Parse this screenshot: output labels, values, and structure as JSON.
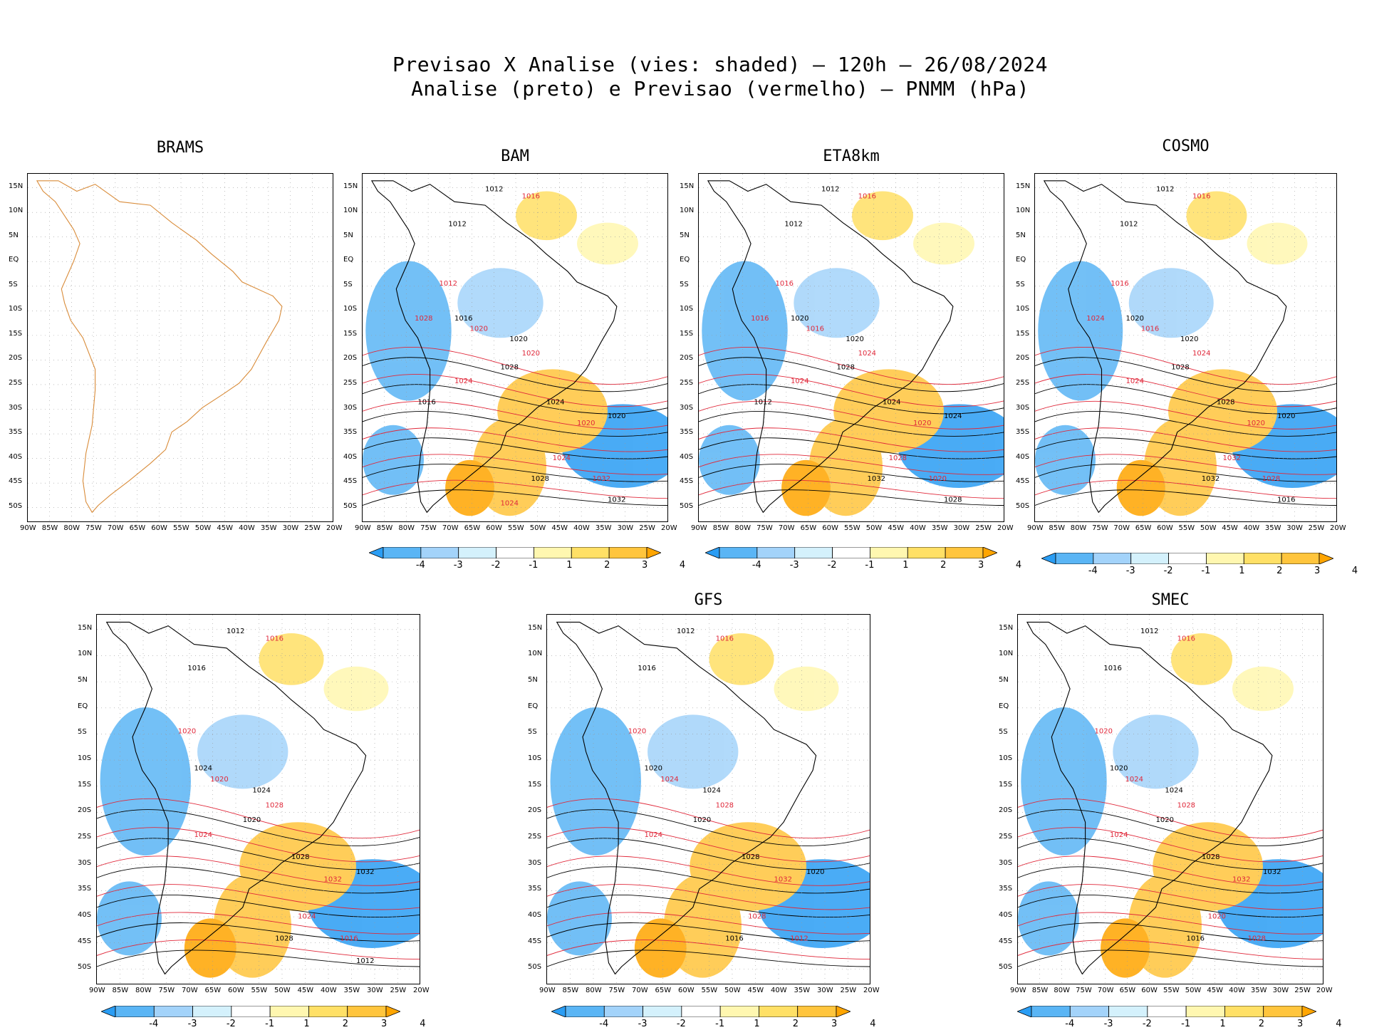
{
  "header": {
    "line1": "Previsao X Analise (vies: shaded) — 120h — 26/08/2024",
    "line2": "Analise (preto) e Previsao (vermelho) — PNMM (hPa)"
  },
  "lat_labels": [
    "15N",
    "10N",
    "5N",
    "EQ",
    "5S",
    "10S",
    "15S",
    "20S",
    "25S",
    "30S",
    "35S",
    "40S",
    "45S",
    "50S"
  ],
  "lon_labels": [
    "90W",
    "85W",
    "80W",
    "75W",
    "70W",
    "65W",
    "60W",
    "55W",
    "50W",
    "45W",
    "40W",
    "35W",
    "30W",
    "25W",
    "20W"
  ],
  "colorbar": {
    "labels": [
      "-4",
      "-3",
      "-2",
      "-1",
      "1",
      "2",
      "3",
      "4"
    ],
    "colors": [
      "#2a9df4",
      "#5ab5f5",
      "#a3d3fa",
      "#d4f1fc",
      "#ffffff",
      "#fff7b0",
      "#ffe066",
      "#ffc53d",
      "#ffa500"
    ]
  },
  "colors": {
    "coast": "#d98c3a",
    "analysis": "#000000",
    "forecast": "#e0283a"
  },
  "panels": [
    {
      "name": "BRAMS",
      "has_colorbar": false,
      "contours": []
    },
    {
      "name": "BAM",
      "has_colorbar": true,
      "contours": [
        "1012",
        "1016",
        "1012",
        "1012",
        "1016",
        "1020",
        "1020",
        "1020",
        "1028",
        "1024",
        "1024",
        "1020",
        "1020",
        "1024",
        "1028",
        "1032",
        "1032",
        "1028",
        "1016",
        "1024"
      ]
    },
    {
      "name": "ETA8km",
      "has_colorbar": true,
      "contours": [
        "1012",
        "1016",
        "1012",
        "1016",
        "1020",
        "1016",
        "1020",
        "1024",
        "1028",
        "1024",
        "1024",
        "1020",
        "1024",
        "1028",
        "1032",
        "1020",
        "1028",
        "1016",
        "1012"
      ]
    },
    {
      "name": "COSMO",
      "has_colorbar": true,
      "contours": [
        "1012",
        "1016",
        "1012",
        "1016",
        "1020",
        "1016",
        "1020",
        "1024",
        "1028",
        "1024",
        "1028",
        "1020",
        "1020",
        "1032",
        "1032",
        "1028",
        "1016",
        "1024"
      ]
    },
    {
      "name": "",
      "has_colorbar": true,
      "contours": [
        "1012",
        "1016",
        "1016",
        "1020",
        "1024",
        "1020",
        "1024",
        "1028",
        "1020",
        "1024",
        "1028",
        "1032",
        "1032",
        "1024",
        "1028",
        "1016",
        "1012"
      ]
    },
    {
      "name": "GFS",
      "has_colorbar": true,
      "contours": [
        "1012",
        "1016",
        "1016",
        "1020",
        "1020",
        "1024",
        "1024",
        "1028",
        "1020",
        "1024",
        "1028",
        "1032",
        "1020",
        "1028",
        "1016",
        "1012"
      ]
    },
    {
      "name": "SMEC",
      "has_colorbar": true,
      "contours": [
        "1012",
        "1016",
        "1016",
        "1020",
        "1020",
        "1024",
        "1024",
        "1028",
        "1020",
        "1024",
        "1028",
        "1032",
        "1032",
        "1020",
        "1016",
        "1028"
      ]
    }
  ]
}
